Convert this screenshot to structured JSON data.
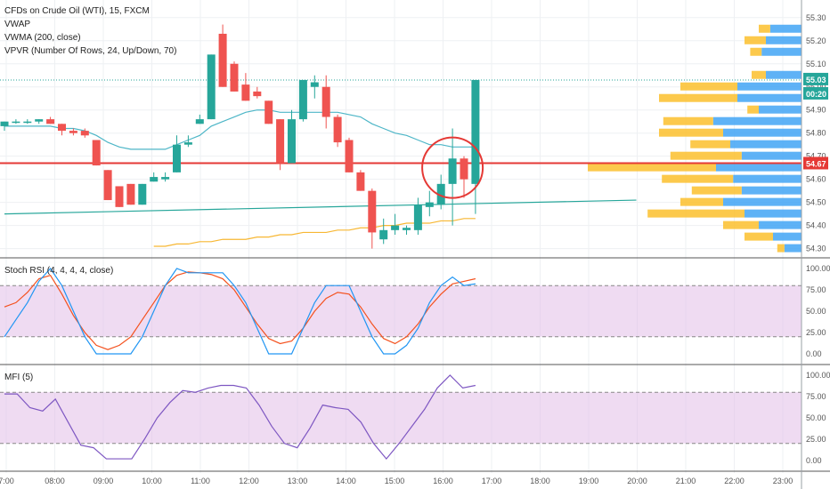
{
  "header": {
    "line1": "CFDs on Crude Oil (WTI), 15, FXCM",
    "line2": "VWAP",
    "line3": "VWMA (200, close)",
    "line4": "VPVR (Number Of Rows, 24, Up/Down, 70)"
  },
  "badges": {
    "last_price": "55.03",
    "countdown": "00:20",
    "hline_price": "54.67"
  },
  "stoch_title": "Stoch RSI (4, 4, 4, 4, close)",
  "mfi_title": "MFI (5)",
  "colors": {
    "up": "#26a69a",
    "down": "#ef5350",
    "vwap": "#4db6c7",
    "vwma": "#f7b733",
    "hline": "#e53935",
    "k_line": "#2196f3",
    "d_line": "#f4511e",
    "mfi_line": "#7e57c2",
    "band": "#e1bee7",
    "vp_up": "#42a5f5",
    "vp_down": "#fbc02d"
  },
  "chart_data": [
    {
      "type": "candlestick",
      "price_ticks": [
        "55.30",
        "55.20",
        "55.10",
        "55.00",
        "54.90",
        "54.80",
        "54.70",
        "54.60",
        "54.50",
        "54.40",
        "54.30"
      ],
      "time_ticks": [
        "7:00",
        "08:00",
        "09:00",
        "10:00",
        "11:00",
        "12:00",
        "13:00",
        "14:00",
        "15:00",
        "16:00",
        "17:00",
        "18:00",
        "19:00",
        "20:00",
        "21:00",
        "22:00",
        "23:00"
      ],
      "candles": [
        {
          "o": 54.83,
          "h": 54.85,
          "l": 54.81,
          "c": 54.85
        },
        {
          "o": 54.85,
          "h": 54.86,
          "l": 54.84,
          "c": 54.85
        },
        {
          "o": 54.85,
          "h": 54.86,
          "l": 54.84,
          "c": 54.85
        },
        {
          "o": 54.85,
          "h": 54.86,
          "l": 54.84,
          "c": 54.86
        },
        {
          "o": 54.86,
          "h": 54.87,
          "l": 54.84,
          "c": 54.84
        },
        {
          "o": 54.84,
          "h": 54.84,
          "l": 54.79,
          "c": 54.81
        },
        {
          "o": 54.81,
          "h": 54.82,
          "l": 54.79,
          "c": 54.8
        },
        {
          "o": 54.81,
          "h": 54.82,
          "l": 54.78,
          "c": 54.79
        },
        {
          "o": 54.77,
          "h": 54.77,
          "l": 54.66,
          "c": 54.66
        },
        {
          "o": 54.64,
          "h": 54.64,
          "l": 54.51,
          "c": 54.51
        },
        {
          "o": 54.57,
          "h": 54.57,
          "l": 54.48,
          "c": 54.48
        },
        {
          "o": 54.58,
          "h": 54.58,
          "l": 54.49,
          "c": 54.49
        },
        {
          "o": 54.49,
          "h": 54.58,
          "l": 54.49,
          "c": 54.58
        },
        {
          "o": 54.59,
          "h": 54.63,
          "l": 54.59,
          "c": 54.61
        },
        {
          "o": 54.6,
          "h": 54.63,
          "l": 54.59,
          "c": 54.61
        },
        {
          "o": 54.63,
          "h": 54.79,
          "l": 54.63,
          "c": 54.75
        },
        {
          "o": 54.75,
          "h": 54.79,
          "l": 54.74,
          "c": 54.76
        },
        {
          "o": 54.84,
          "h": 54.88,
          "l": 54.84,
          "c": 54.86
        },
        {
          "o": 54.86,
          "h": 55.14,
          "l": 54.86,
          "c": 55.14
        },
        {
          "o": 55.23,
          "h": 55.27,
          "l": 55.0,
          "c": 55.0
        },
        {
          "o": 55.1,
          "h": 55.11,
          "l": 54.98,
          "c": 54.98
        },
        {
          "o": 55.01,
          "h": 55.06,
          "l": 54.94,
          "c": 54.94
        },
        {
          "o": 54.98,
          "h": 55.0,
          "l": 54.95,
          "c": 54.96
        },
        {
          "o": 54.94,
          "h": 54.94,
          "l": 54.84,
          "c": 54.84
        },
        {
          "o": 54.86,
          "h": 54.86,
          "l": 54.64,
          "c": 54.67
        },
        {
          "o": 54.67,
          "h": 54.9,
          "l": 54.67,
          "c": 54.86
        },
        {
          "o": 54.86,
          "h": 55.03,
          "l": 54.85,
          "c": 55.03
        },
        {
          "o": 55.0,
          "h": 55.05,
          "l": 54.95,
          "c": 55.02
        },
        {
          "o": 55.0,
          "h": 55.05,
          "l": 54.82,
          "c": 54.87
        },
        {
          "o": 54.87,
          "h": 54.88,
          "l": 54.74,
          "c": 54.76
        },
        {
          "o": 54.77,
          "h": 54.78,
          "l": 54.63,
          "c": 54.63
        },
        {
          "o": 54.63,
          "h": 54.64,
          "l": 54.55,
          "c": 54.55
        },
        {
          "o": 54.55,
          "h": 54.56,
          "l": 54.3,
          "c": 54.37
        },
        {
          "o": 54.34,
          "h": 54.43,
          "l": 54.32,
          "c": 54.38
        },
        {
          "o": 54.38,
          "h": 54.45,
          "l": 54.36,
          "c": 54.4
        },
        {
          "o": 54.38,
          "h": 54.4,
          "l": 54.36,
          "c": 54.39
        },
        {
          "o": 54.38,
          "h": 54.52,
          "l": 54.36,
          "c": 54.49
        },
        {
          "o": 54.48,
          "h": 54.55,
          "l": 54.44,
          "c": 54.5
        },
        {
          "o": 54.49,
          "h": 54.62,
          "l": 54.47,
          "c": 54.58
        },
        {
          "o": 54.58,
          "h": 54.82,
          "l": 54.4,
          "c": 54.69
        },
        {
          "o": 54.69,
          "h": 54.7,
          "l": 54.52,
          "c": 54.6
        },
        {
          "o": 54.58,
          "h": 55.03,
          "l": 54.45,
          "c": 55.03
        }
      ],
      "vwap": [
        54.83,
        54.83,
        54.83,
        54.83,
        54.83,
        54.82,
        54.82,
        54.81,
        54.79,
        54.76,
        54.74,
        54.73,
        54.73,
        54.73,
        54.73,
        54.75,
        54.77,
        54.79,
        54.83,
        54.85,
        54.87,
        54.89,
        54.9,
        54.9,
        54.89,
        54.89,
        54.89,
        54.89,
        54.89,
        54.89,
        54.88,
        54.87,
        54.84,
        54.82,
        54.8,
        54.79,
        54.77,
        54.75,
        54.75,
        54.74,
        54.74,
        54.74
      ],
      "vwma": [
        null,
        null,
        null,
        null,
        null,
        null,
        null,
        null,
        null,
        null,
        null,
        null,
        null,
        54.31,
        54.31,
        54.32,
        54.32,
        54.33,
        54.33,
        54.34,
        54.34,
        54.34,
        54.35,
        54.35,
        54.36,
        54.36,
        54.37,
        54.37,
        54.37,
        54.38,
        54.38,
        54.39,
        54.39,
        54.4,
        54.4,
        54.41,
        54.41,
        54.41,
        54.42,
        54.42,
        54.43,
        54.43
      ],
      "trendline": [
        [
          0,
          54.45
        ],
        [
          55,
          54.51
        ]
      ],
      "hline": 54.67,
      "volume_profile": [
        {
          "price": 55.25,
          "up": 0.22,
          "down": 0.08
        },
        {
          "price": 55.2,
          "up": 0.25,
          "down": 0.15
        },
        {
          "price": 55.15,
          "up": 0.28,
          "down": 0.08
        },
        {
          "price": 55.05,
          "up": 0.25,
          "down": 0.1
        },
        {
          "price": 55.0,
          "up": 0.45,
          "down": 0.4
        },
        {
          "price": 54.95,
          "up": 0.45,
          "down": 0.55
        },
        {
          "price": 54.9,
          "up": 0.3,
          "down": 0.08
        },
        {
          "price": 54.85,
          "up": 0.62,
          "down": 0.35
        },
        {
          "price": 54.8,
          "up": 0.55,
          "down": 0.45
        },
        {
          "price": 54.75,
          "up": 0.5,
          "down": 0.28
        },
        {
          "price": 54.7,
          "up": 0.42,
          "down": 0.5
        },
        {
          "price": 54.65,
          "up": 0.6,
          "down": 0.9
        },
        {
          "price": 54.6,
          "up": 0.48,
          "down": 0.5
        },
        {
          "price": 54.55,
          "up": 0.42,
          "down": 0.35
        },
        {
          "price": 54.5,
          "up": 0.55,
          "down": 0.3
        },
        {
          "price": 54.45,
          "up": 0.4,
          "down": 0.68
        },
        {
          "price": 54.4,
          "up": 0.3,
          "down": 0.25
        },
        {
          "price": 54.35,
          "up": 0.2,
          "down": 0.2
        },
        {
          "price": 54.3,
          "up": 0.12,
          "down": 0.05
        }
      ]
    },
    {
      "type": "line",
      "name": "Stoch RSI",
      "ylim": [
        0,
        100
      ],
      "ticks": [
        "100.00",
        "75.00",
        "50.00",
        "25.00",
        "0.00"
      ],
      "bands": [
        80,
        20
      ],
      "k": [
        20,
        40,
        60,
        85,
        100,
        80,
        50,
        20,
        0,
        0,
        0,
        0,
        20,
        50,
        80,
        100,
        95,
        95,
        95,
        95,
        80,
        60,
        30,
        0,
        0,
        0,
        30,
        60,
        80,
        80,
        80,
        50,
        20,
        0,
        0,
        10,
        30,
        60,
        80,
        90,
        80,
        82
      ],
      "d": [
        55,
        60,
        72,
        88,
        92,
        70,
        45,
        25,
        10,
        5,
        10,
        20,
        40,
        60,
        80,
        92,
        96,
        95,
        93,
        88,
        75,
        55,
        35,
        18,
        12,
        15,
        30,
        50,
        65,
        72,
        70,
        55,
        35,
        18,
        12,
        20,
        35,
        55,
        70,
        82,
        85,
        88
      ]
    },
    {
      "type": "line",
      "name": "MFI",
      "ylim": [
        0,
        100
      ],
      "ticks": [
        "100.00",
        "75.00",
        "50.00",
        "25.00",
        "0.00"
      ],
      "bands": [
        80,
        20
      ],
      "values": [
        78,
        78,
        62,
        58,
        72,
        45,
        18,
        15,
        2,
        2,
        2,
        25,
        50,
        68,
        82,
        80,
        85,
        88,
        88,
        85,
        65,
        40,
        20,
        15,
        38,
        65,
        62,
        60,
        45,
        20,
        2,
        20,
        40,
        60,
        85,
        100,
        85,
        88
      ]
    }
  ]
}
